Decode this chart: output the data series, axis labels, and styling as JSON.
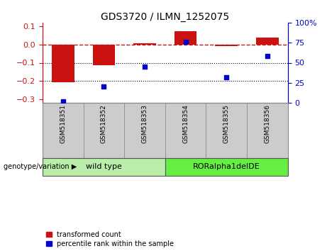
{
  "title": "GDS3720 / ILMN_1252075",
  "samples": [
    "GSM518351",
    "GSM518352",
    "GSM518353",
    "GSM518354",
    "GSM518355",
    "GSM518356"
  ],
  "bar_values": [
    -0.205,
    -0.113,
    0.008,
    0.073,
    -0.007,
    0.038
  ],
  "scatter_values": [
    2.0,
    20.0,
    45.0,
    76.0,
    32.0,
    58.0
  ],
  "ylim_left": [
    -0.32,
    0.12
  ],
  "ylim_right": [
    0,
    100
  ],
  "yticks_left": [
    -0.3,
    -0.2,
    -0.1,
    0.0,
    0.1
  ],
  "yticks_right": [
    0,
    25,
    50,
    75,
    100
  ],
  "bar_color": "#CC1111",
  "scatter_color": "#0000CC",
  "dotted_lines": [
    -0.1,
    -0.2
  ],
  "group_labels": [
    "wild type",
    "RORalpha1delDE"
  ],
  "group_ranges": [
    [
      0,
      3
    ],
    [
      3,
      6
    ]
  ],
  "group_colors_light": [
    "#BBEEAA",
    "#66EE44"
  ],
  "sample_bg": "#CCCCCC",
  "genotype_label": "genotype/variation",
  "legend_items": [
    "transformed count",
    "percentile rank within the sample"
  ],
  "bar_width": 0.55,
  "xlim": [
    -0.5,
    5.5
  ]
}
